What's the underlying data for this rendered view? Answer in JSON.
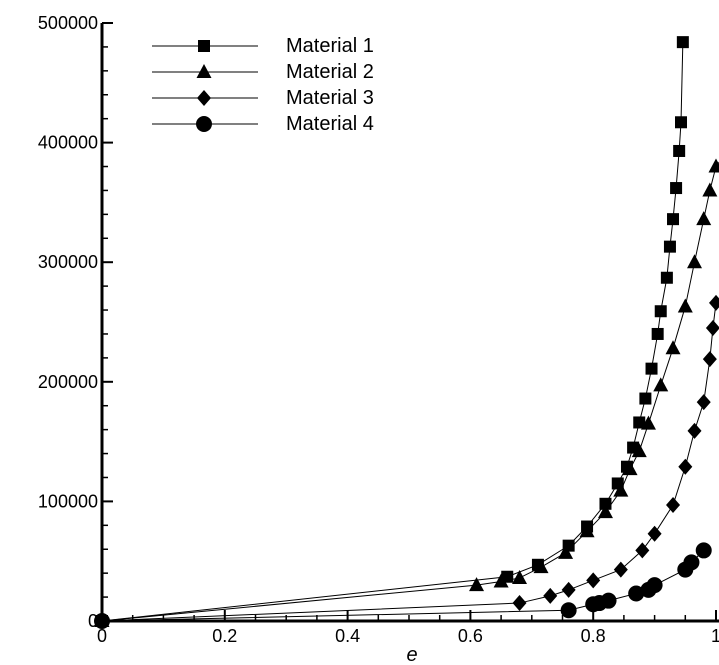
{
  "chart_data": {
    "type": "line",
    "xlabel": "e",
    "ylabel": "",
    "xlim": [
      0,
      1
    ],
    "ylim": [
      0,
      500000
    ],
    "x_ticks": [
      0,
      0.2,
      0.4,
      0.6,
      0.8,
      1
    ],
    "x_tick_labels": [
      "0",
      "0.2",
      "0.4",
      "0.6",
      "0.8",
      "1"
    ],
    "y_ticks": [
      0,
      100000,
      200000,
      300000,
      400000,
      500000
    ],
    "y_tick_labels": [
      "0",
      "100000",
      "200000",
      "300000",
      "400000",
      "500000"
    ],
    "grid": false,
    "legend_position": "top-left",
    "series": [
      {
        "name": "Material 1",
        "marker": "square",
        "x": [
          0,
          0.66,
          0.71,
          0.76,
          0.79,
          0.82,
          0.84,
          0.855,
          0.865,
          0.875,
          0.885,
          0.895,
          0.905,
          0.91,
          0.92,
          0.925,
          0.93,
          0.935,
          0.94,
          0.943,
          0.946
        ],
        "y": [
          0,
          37000,
          47000,
          63000,
          79000,
          98000,
          115000,
          129000,
          145000,
          166000,
          186000,
          211000,
          240000,
          259000,
          287000,
          313000,
          336000,
          362000,
          393000,
          417000,
          484000
        ]
      },
      {
        "name": "Material 2",
        "marker": "triangle",
        "x": [
          0,
          0.61,
          0.65,
          0.68,
          0.715,
          0.755,
          0.79,
          0.82,
          0.845,
          0.86,
          0.875,
          0.89,
          0.91,
          0.93,
          0.95,
          0.965,
          0.98,
          0.99,
          1.0,
          1.01
        ],
        "y": [
          0,
          30000,
          33000,
          36000,
          45000,
          57000,
          75000,
          91000,
          109000,
          127000,
          142000,
          165000,
          197000,
          228000,
          263000,
          300000,
          336000,
          360000,
          380000,
          387000
        ]
      },
      {
        "name": "Material 3",
        "marker": "diamond",
        "x": [
          0,
          0.68,
          0.73,
          0.76,
          0.8,
          0.845,
          0.88,
          0.9,
          0.93,
          0.95,
          0.965,
          0.98,
          0.99,
          0.995,
          1.0
        ],
        "y": [
          0,
          15000,
          21000,
          26000,
          34000,
          43000,
          59000,
          73000,
          97000,
          129000,
          159000,
          183000,
          219000,
          245000,
          266000
        ]
      },
      {
        "name": "Material 4",
        "marker": "circle",
        "x": [
          0,
          0.76,
          0.8,
          0.81,
          0.825,
          0.87,
          0.89,
          0.9,
          0.95,
          0.96,
          0.98
        ],
        "y": [
          0,
          9000,
          14000,
          15000,
          17000,
          23000,
          26000,
          30000,
          43000,
          49000,
          59000
        ]
      }
    ]
  }
}
